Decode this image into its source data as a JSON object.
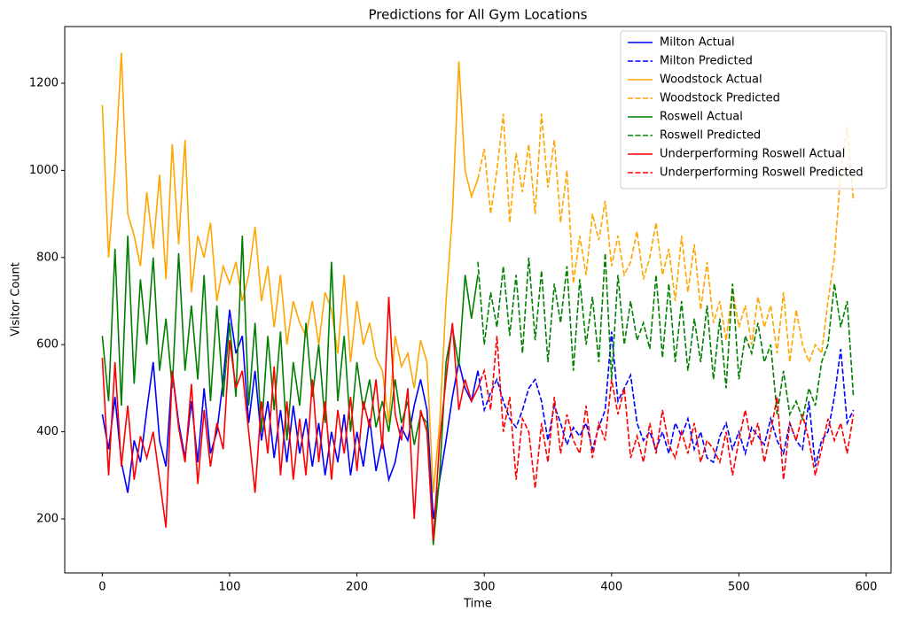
{
  "chart_data": {
    "type": "line",
    "title": "Predictions for All Gym Locations",
    "xlabel": "Time",
    "ylabel": "Visitor Count",
    "xlim": [
      -29.5,
      619.5
    ],
    "ylim": [
      76,
      1330
    ],
    "xticks": [
      0,
      100,
      200,
      300,
      400,
      500,
      600
    ],
    "yticks": [
      200,
      400,
      600,
      800,
      1000,
      1200
    ],
    "legend": "upper right",
    "series": [
      {
        "name": "Milton Actual",
        "color": "#0000ff",
        "linestyle": "solid",
        "x": [
          0,
          5,
          10,
          15,
          20,
          25,
          30,
          35,
          40,
          45,
          50,
          55,
          60,
          65,
          70,
          75,
          80,
          85,
          90,
          95,
          100,
          105,
          110,
          115,
          120,
          125,
          130,
          135,
          140,
          145,
          150,
          155,
          160,
          165,
          170,
          175,
          180,
          185,
          190,
          195,
          200,
          205,
          210,
          215,
          220,
          225,
          230,
          235,
          240,
          245,
          250,
          255,
          260,
          265,
          270,
          275,
          280,
          285,
          290,
          295
        ],
        "values": [
          440,
          360,
          480,
          330,
          260,
          380,
          330,
          450,
          560,
          380,
          320,
          540,
          420,
          340,
          470,
          330,
          500,
          350,
          400,
          520,
          680,
          580,
          620,
          420,
          540,
          380,
          470,
          340,
          450,
          330,
          460,
          350,
          430,
          320,
          420,
          300,
          400,
          330,
          440,
          300,
          400,
          320,
          430,
          310,
          380,
          290,
          330,
          410,
          380,
          460,
          520,
          450,
          200,
          290,
          380,
          480,
          560,
          500,
          470,
          540
        ]
      },
      {
        "name": "Milton Predicted",
        "color": "#0000ff",
        "linestyle": "dashed",
        "x": [
          295,
          300,
          305,
          310,
          315,
          320,
          325,
          330,
          335,
          340,
          345,
          350,
          355,
          360,
          365,
          370,
          375,
          380,
          385,
          390,
          395,
          400,
          405,
          410,
          415,
          420,
          425,
          430,
          435,
          440,
          445,
          450,
          455,
          460,
          465,
          470,
          475,
          480,
          485,
          490,
          495,
          500,
          505,
          510,
          515,
          520,
          525,
          530,
          535,
          540,
          545,
          550,
          555,
          560,
          565,
          570,
          575,
          580,
          585,
          590
        ],
        "values": [
          540,
          450,
          490,
          520,
          470,
          430,
          410,
          450,
          500,
          520,
          470,
          380,
          460,
          420,
          370,
          410,
          390,
          420,
          360,
          410,
          450,
          630,
          470,
          500,
          530,
          420,
          380,
          400,
          360,
          400,
          350,
          420,
          390,
          430,
          360,
          400,
          340,
          330,
          390,
          420,
          360,
          400,
          350,
          410,
          390,
          370,
          430,
          380,
          350,
          420,
          380,
          360,
          470,
          320,
          380,
          400,
          480,
          590,
          420,
          450
        ]
      },
      {
        "name": "Woodstock Actual",
        "color": "#ffa500",
        "linestyle": "solid",
        "x": [
          0,
          5,
          10,
          15,
          20,
          25,
          30,
          35,
          40,
          45,
          50,
          55,
          60,
          65,
          70,
          75,
          80,
          85,
          90,
          95,
          100,
          105,
          110,
          115,
          120,
          125,
          130,
          135,
          140,
          145,
          150,
          155,
          160,
          165,
          170,
          175,
          180,
          185,
          190,
          195,
          200,
          205,
          210,
          215,
          220,
          225,
          230,
          235,
          240,
          245,
          250,
          255,
          260,
          265,
          270,
          275,
          280,
          285,
          290,
          295
        ],
        "values": [
          1150,
          800,
          1000,
          1270,
          900,
          850,
          780,
          950,
          820,
          990,
          750,
          1060,
          830,
          1070,
          720,
          850,
          800,
          880,
          700,
          780,
          740,
          790,
          700,
          760,
          870,
          700,
          780,
          640,
          760,
          600,
          700,
          650,
          620,
          700,
          600,
          720,
          680,
          580,
          760,
          560,
          700,
          600,
          650,
          570,
          540,
          420,
          620,
          550,
          580,
          500,
          610,
          560,
          260,
          420,
          700,
          900,
          1250,
          1000,
          940,
          980
        ]
      },
      {
        "name": "Woodstock Predicted",
        "color": "#ffa500",
        "linestyle": "dashed",
        "x": [
          295,
          300,
          305,
          310,
          315,
          320,
          325,
          330,
          335,
          340,
          345,
          350,
          355,
          360,
          365,
          370,
          375,
          380,
          385,
          390,
          395,
          400,
          405,
          410,
          415,
          420,
          425,
          430,
          435,
          440,
          445,
          450,
          455,
          460,
          465,
          470,
          475,
          480,
          485,
          490,
          495,
          500,
          505,
          510,
          515,
          520,
          525,
          530,
          535,
          540,
          545,
          550,
          555,
          560,
          565,
          570,
          575,
          580,
          585,
          590
        ],
        "values": [
          980,
          1050,
          900,
          1000,
          1130,
          880,
          1040,
          950,
          1060,
          900,
          1130,
          960,
          1070,
          880,
          1000,
          740,
          850,
          760,
          900,
          840,
          930,
          780,
          850,
          760,
          790,
          860,
          750,
          800,
          880,
          760,
          820,
          700,
          850,
          720,
          830,
          680,
          790,
          650,
          700,
          610,
          730,
          640,
          690,
          600,
          710,
          640,
          690,
          580,
          720,
          560,
          680,
          600,
          560,
          600,
          580,
          700,
          800,
          1000,
          1100,
          930
        ]
      },
      {
        "name": "Roswell Actual",
        "color": "#008000",
        "linestyle": "solid",
        "x": [
          0,
          5,
          10,
          15,
          20,
          25,
          30,
          35,
          40,
          45,
          50,
          55,
          60,
          65,
          70,
          75,
          80,
          85,
          90,
          95,
          100,
          105,
          110,
          115,
          120,
          125,
          130,
          135,
          140,
          145,
          150,
          155,
          160,
          165,
          170,
          175,
          180,
          185,
          190,
          195,
          200,
          205,
          210,
          215,
          220,
          225,
          230,
          235,
          240,
          245,
          250,
          255,
          260,
          265,
          270,
          275,
          280,
          285,
          290,
          295
        ],
        "values": [
          620,
          470,
          820,
          460,
          850,
          510,
          750,
          600,
          800,
          540,
          660,
          500,
          810,
          540,
          690,
          520,
          760,
          470,
          690,
          480,
          650,
          480,
          850,
          460,
          650,
          400,
          620,
          450,
          630,
          380,
          560,
          460,
          650,
          480,
          600,
          420,
          790,
          470,
          620,
          400,
          560,
          450,
          520,
          410,
          470,
          400,
          520,
          420,
          470,
          370,
          440,
          420,
          140,
          300,
          560,
          640,
          550,
          760,
          660,
          760
        ]
      },
      {
        "name": "Roswell Predicted",
        "color": "#008000",
        "linestyle": "dashed",
        "x": [
          295,
          300,
          305,
          310,
          315,
          320,
          325,
          330,
          335,
          340,
          345,
          350,
          355,
          360,
          365,
          370,
          375,
          380,
          385,
          390,
          395,
          400,
          405,
          410,
          415,
          420,
          425,
          430,
          435,
          440,
          445,
          450,
          455,
          460,
          465,
          470,
          475,
          480,
          485,
          490,
          495,
          500,
          505,
          510,
          515,
          520,
          525,
          530,
          535,
          540,
          545,
          550,
          555,
          560,
          565,
          570,
          575,
          580,
          585,
          590
        ],
        "values": [
          790,
          600,
          720,
          640,
          780,
          620,
          760,
          580,
          800,
          610,
          770,
          560,
          740,
          650,
          780,
          540,
          750,
          600,
          710,
          560,
          810,
          520,
          760,
          600,
          700,
          610,
          650,
          590,
          760,
          570,
          740,
          560,
          700,
          540,
          660,
          560,
          690,
          520,
          660,
          500,
          740,
          520,
          620,
          580,
          650,
          560,
          600,
          440,
          540,
          440,
          470,
          430,
          500,
          460,
          560,
          600,
          740,
          640,
          700,
          480
        ]
      },
      {
        "name": "Underperforming Roswell Actual",
        "color": "#ff0000",
        "linestyle": "solid",
        "x": [
          0,
          5,
          10,
          15,
          20,
          25,
          30,
          35,
          40,
          45,
          50,
          55,
          60,
          65,
          70,
          75,
          80,
          85,
          90,
          95,
          100,
          105,
          110,
          115,
          120,
          125,
          130,
          135,
          140,
          145,
          150,
          155,
          160,
          165,
          170,
          175,
          180,
          185,
          190,
          195,
          200,
          205,
          210,
          215,
          220,
          225,
          230,
          235,
          240,
          245,
          250,
          255,
          260,
          265,
          270,
          275,
          280,
          285,
          290,
          295
        ],
        "values": [
          570,
          300,
          560,
          320,
          460,
          290,
          390,
          340,
          400,
          290,
          180,
          540,
          410,
          330,
          510,
          280,
          450,
          320,
          420,
          360,
          610,
          500,
          540,
          400,
          260,
          470,
          350,
          550,
          300,
          470,
          290,
          430,
          300,
          520,
          330,
          470,
          290,
          450,
          350,
          480,
          310,
          470,
          410,
          520,
          360,
          710,
          440,
          380,
          500,
          200,
          450,
          400,
          150,
          380,
          520,
          650,
          450,
          520,
          470,
          500
        ]
      },
      {
        "name": "Underperforming Roswell Predicted",
        "color": "#ff0000",
        "linestyle": "dashed",
        "x": [
          295,
          300,
          305,
          310,
          315,
          320,
          325,
          330,
          335,
          340,
          345,
          350,
          355,
          360,
          365,
          370,
          375,
          380,
          385,
          390,
          395,
          400,
          405,
          410,
          415,
          420,
          425,
          430,
          435,
          440,
          445,
          450,
          455,
          460,
          465,
          470,
          475,
          480,
          485,
          490,
          495,
          500,
          505,
          510,
          515,
          520,
          525,
          530,
          535,
          540,
          545,
          550,
          555,
          560,
          565,
          570,
          575,
          580,
          585,
          590
        ],
        "values": [
          500,
          540,
          450,
          620,
          400,
          480,
          290,
          430,
          400,
          270,
          420,
          330,
          480,
          350,
          440,
          380,
          350,
          460,
          340,
          420,
          380,
          520,
          440,
          500,
          340,
          390,
          330,
          420,
          350,
          450,
          370,
          340,
          400,
          350,
          420,
          330,
          380,
          360,
          330,
          400,
          300,
          380,
          450,
          370,
          420,
          330,
          400,
          480,
          290,
          420,
          380,
          440,
          380,
          300,
          360,
          430,
          380,
          420,
          350,
          440
        ]
      }
    ]
  }
}
